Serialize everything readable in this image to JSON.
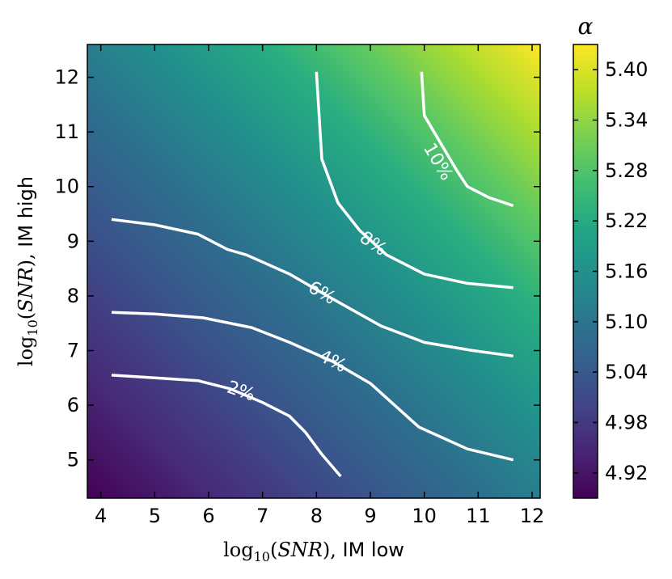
{
  "chart_data": {
    "type": "heatmap",
    "title": "",
    "xlabel": "log10(SNR), IM low",
    "ylabel": "log10(SNR), IM high",
    "xlim": [
      3.75,
      12.15
    ],
    "ylim": [
      4.3,
      12.6
    ],
    "x_ticks": [
      4,
      5,
      6,
      7,
      8,
      9,
      10,
      11,
      12
    ],
    "y_ticks": [
      5,
      6,
      7,
      8,
      9,
      10,
      11,
      12
    ],
    "x_tick_labels": [
      "4",
      "5",
      "6",
      "7",
      "8",
      "9",
      "10",
      "11",
      "12"
    ],
    "y_tick_labels": [
      "5",
      "6",
      "7",
      "8",
      "9",
      "10",
      "11",
      "12"
    ],
    "colormap": "viridis",
    "grid": false,
    "colorbar": {
      "title": "α",
      "range": [
        4.89,
        5.43
      ],
      "ticks": [
        4.92,
        4.98,
        5.04,
        5.1,
        5.16,
        5.22,
        5.28,
        5.34,
        5.4
      ],
      "tick_labels": [
        "4.92",
        "4.98",
        "5.04",
        "5.10",
        "5.16",
        "5.22",
        "5.28",
        "5.34",
        "5.40"
      ]
    },
    "contours": [
      {
        "label": "2%",
        "x": [
          4.2,
          5.0,
          5.8,
          6.4,
          7.0,
          7.5,
          7.8,
          8.1,
          8.45
        ],
        "y": [
          6.55,
          6.5,
          6.45,
          6.3,
          6.05,
          5.8,
          5.5,
          5.1,
          4.7
        ],
        "label_at": [
          6.6,
          6.25
        ]
      },
      {
        "label": "4%",
        "x": [
          4.2,
          5.0,
          5.9,
          6.8,
          7.5,
          8.3,
          9.0,
          9.9,
          10.8,
          11.65
        ],
        "y": [
          7.7,
          7.67,
          7.6,
          7.42,
          7.15,
          6.8,
          6.4,
          5.6,
          5.2,
          5.0
        ],
        "label_at": [
          8.3,
          6.8
        ]
      },
      {
        "label": "6%",
        "x": [
          4.2,
          5.0,
          5.8,
          6.35,
          6.7,
          7.5,
          8.2,
          9.2,
          10.0,
          10.9,
          11.65
        ],
        "y": [
          9.4,
          9.3,
          9.13,
          8.85,
          8.75,
          8.4,
          8.0,
          7.45,
          7.15,
          7.0,
          6.9
        ],
        "label_at": [
          8.1,
          8.05
        ]
      },
      {
        "label": "8%",
        "x": [
          8.0,
          8.1,
          8.4,
          8.8,
          9.3,
          10.0,
          10.8,
          11.65
        ],
        "y": [
          12.1,
          10.5,
          9.7,
          9.2,
          8.75,
          8.4,
          8.23,
          8.15
        ],
        "label_at": [
          9.05,
          8.95
        ]
      },
      {
        "label": "10%",
        "x": [
          9.95,
          10.0,
          10.3,
          10.6,
          10.8,
          11.2,
          11.65
        ],
        "y": [
          12.1,
          11.3,
          10.8,
          10.3,
          10.0,
          9.8,
          9.65
        ],
        "label_at": [
          10.25,
          10.45
        ]
      }
    ]
  }
}
